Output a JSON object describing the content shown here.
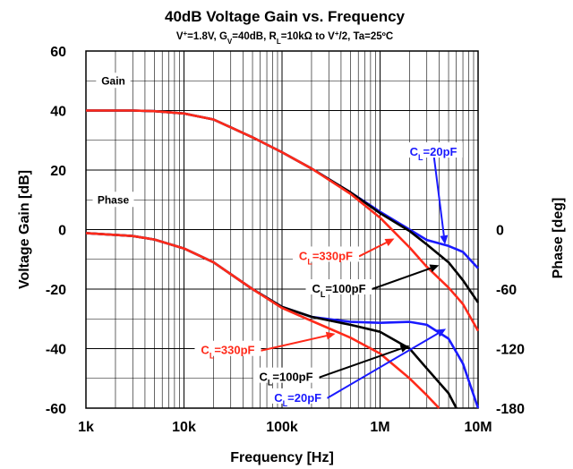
{
  "chart_data": {
    "type": "line",
    "title": "40dB Voltage Gain vs. Frequency",
    "subtitle": "V⁺=1.8V, GV=40dB, RL=10kΩ to V⁺/2, Ta=25ºC",
    "xlabel": "Frequency [Hz]",
    "ylabel": "Voltage Gain [dB]",
    "y2label": "Phase [deg]",
    "xscale": "log",
    "xlim": [
      1000,
      10000000
    ],
    "ylim": [
      -60,
      60
    ],
    "y2lim": [
      -180,
      180
    ],
    "grid": true,
    "x_ticks": [
      {
        "v": 1000,
        "label": "1k"
      },
      {
        "v": 10000,
        "label": "10k"
      },
      {
        "v": 100000,
        "label": "100k"
      },
      {
        "v": 1000000,
        "label": "1M"
      },
      {
        "v": 10000000,
        "label": "10M"
      }
    ],
    "y_ticks": [
      {
        "v": 60,
        "label": "60"
      },
      {
        "v": 40,
        "label": "40"
      },
      {
        "v": 20,
        "label": "20"
      },
      {
        "v": 0,
        "label": "0"
      },
      {
        "v": -20,
        "label": "-20"
      },
      {
        "v": -40,
        "label": "-40"
      },
      {
        "v": -60,
        "label": "-60"
      }
    ],
    "y2_ticks": [
      {
        "v": 0,
        "label": "0"
      },
      {
        "v": -60,
        "label": "-60"
      },
      {
        "v": -120,
        "label": "-120"
      },
      {
        "v": -180,
        "label": "-180"
      }
    ],
    "section_labels": {
      "gain": "Gain",
      "phase": "Phase"
    },
    "gain_series": [
      {
        "cl": "CL=20pF",
        "color": "#1a1aff",
        "points": [
          [
            1000,
            40
          ],
          [
            3000,
            40
          ],
          [
            5000,
            39.8
          ],
          [
            10000,
            39
          ],
          [
            20000,
            37
          ],
          [
            50000,
            31
          ],
          [
            100000,
            26
          ],
          [
            200000,
            20.5
          ],
          [
            500000,
            12.5
          ],
          [
            1000000,
            6
          ],
          [
            2000000,
            0
          ],
          [
            3000000,
            -3.5
          ],
          [
            5000000,
            -5.5
          ],
          [
            7000000,
            -7.5
          ],
          [
            10000000,
            -13
          ]
        ]
      },
      {
        "cl": "CL=100pF",
        "color": "#000000",
        "points": [
          [
            1000,
            40
          ],
          [
            3000,
            40
          ],
          [
            5000,
            39.8
          ],
          [
            10000,
            39
          ],
          [
            20000,
            37
          ],
          [
            50000,
            31
          ],
          [
            100000,
            26
          ],
          [
            200000,
            20.5
          ],
          [
            500000,
            12.5
          ],
          [
            1000000,
            5.5
          ],
          [
            2000000,
            -0.5
          ],
          [
            3000000,
            -5
          ],
          [
            5000000,
            -11
          ],
          [
            7000000,
            -17
          ],
          [
            10000000,
            -24.5
          ]
        ]
      },
      {
        "cl": "CL=330pF",
        "color": "#ff2a1a",
        "points": [
          [
            1000,
            40
          ],
          [
            3000,
            40
          ],
          [
            5000,
            39.8
          ],
          [
            10000,
            39
          ],
          [
            20000,
            37
          ],
          [
            50000,
            31
          ],
          [
            100000,
            26
          ],
          [
            200000,
            20.5
          ],
          [
            500000,
            12
          ],
          [
            1000000,
            4
          ],
          [
            2000000,
            -6
          ],
          [
            3000000,
            -12.5
          ],
          [
            5000000,
            -19.5
          ],
          [
            7000000,
            -25
          ],
          [
            10000000,
            -34
          ]
        ]
      }
    ],
    "phase_series": [
      {
        "cl": "CL=20pF",
        "color": "#1a1aff",
        "points": [
          [
            1000,
            -3.5
          ],
          [
            3000,
            -6.5
          ],
          [
            5000,
            -10
          ],
          [
            10000,
            -19
          ],
          [
            20000,
            -33
          ],
          [
            50000,
            -60
          ],
          [
            100000,
            -78
          ],
          [
            200000,
            -88
          ],
          [
            500000,
            -93
          ],
          [
            1000000,
            -94
          ],
          [
            2000000,
            -93
          ],
          [
            3000000,
            -96
          ],
          [
            5000000,
            -110
          ],
          [
            7000000,
            -135
          ],
          [
            10000000,
            -180
          ]
        ]
      },
      {
        "cl": "CL=100pF",
        "color": "#000000",
        "points": [
          [
            1000,
            -3.5
          ],
          [
            3000,
            -6.5
          ],
          [
            5000,
            -10
          ],
          [
            10000,
            -19
          ],
          [
            20000,
            -33
          ],
          [
            50000,
            -60
          ],
          [
            100000,
            -78
          ],
          [
            200000,
            -88
          ],
          [
            500000,
            -96
          ],
          [
            1000000,
            -103
          ],
          [
            2000000,
            -120
          ],
          [
            3000000,
            -140
          ],
          [
            5000000,
            -165
          ],
          [
            6000000,
            -180
          ]
        ]
      },
      {
        "cl": "CL=330pF",
        "color": "#ff2a1a",
        "points": [
          [
            1000,
            -3.5
          ],
          [
            3000,
            -6.5
          ],
          [
            5000,
            -10
          ],
          [
            10000,
            -19
          ],
          [
            20000,
            -33
          ],
          [
            50000,
            -60
          ],
          [
            100000,
            -79
          ],
          [
            200000,
            -92
          ],
          [
            500000,
            -109
          ],
          [
            1000000,
            -125
          ],
          [
            2000000,
            -150
          ],
          [
            3000000,
            -167
          ],
          [
            4000000,
            -180
          ]
        ]
      }
    ],
    "annotations": [
      {
        "label": "CL=20pF",
        "color": "#1a1aff",
        "axis": "gain",
        "at": [
          4600000,
          -5
        ],
        "text_pos": [
          3500000,
          26
        ]
      },
      {
        "label": "CL=330pF",
        "color": "#ff2a1a",
        "axis": "gain",
        "at": [
          1400000,
          -3
        ],
        "text_pos": [
          280000,
          -9
        ]
      },
      {
        "label": "CL=100pF",
        "color": "#000000",
        "axis": "gain",
        "at": [
          4000000,
          -12
        ],
        "text_pos": [
          380000,
          -20
        ]
      },
      {
        "label": "CL=330pF",
        "color": "#ff2a1a",
        "axis": "phase",
        "at": [
          350000,
          -105
        ],
        "text_pos": [
          28000,
          -122
        ]
      },
      {
        "label": "CL=100pF",
        "color": "#000000",
        "axis": "phase",
        "at": [
          2000000,
          -117
        ],
        "text_pos": [
          110000,
          -149
        ]
      },
      {
        "label": "CL=20pF",
        "color": "#1a1aff",
        "axis": "phase",
        "at": [
          4700000,
          -100
        ],
        "text_pos": [
          145000,
          -170
        ]
      }
    ]
  }
}
